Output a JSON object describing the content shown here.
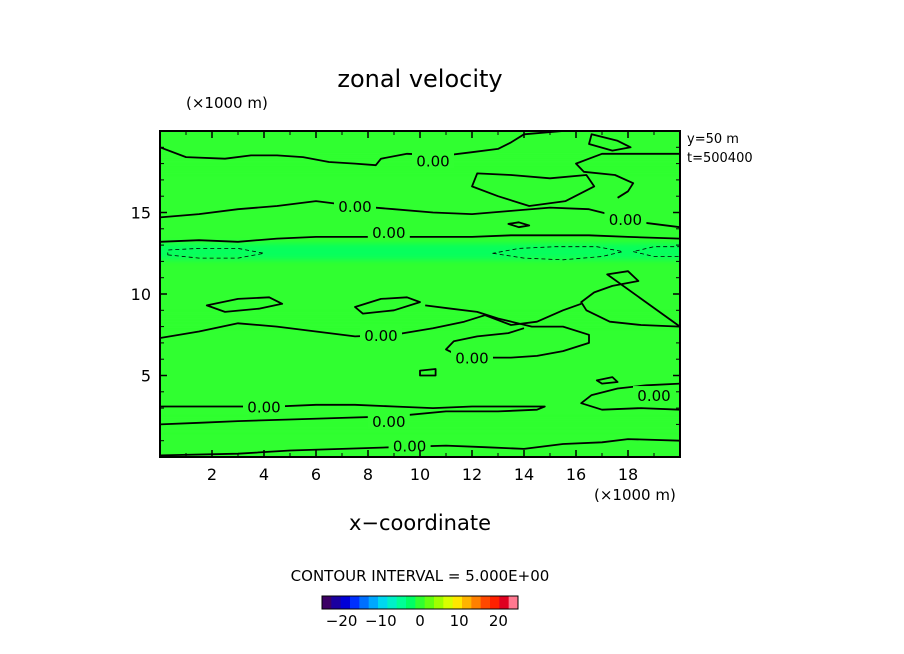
{
  "chart_data": {
    "type": "heatmap",
    "title": "zonal velocity",
    "xlabel": "x−coordinate",
    "x_unit_label": "(×1000 m)",
    "y_unit_label": "(×1000 m)",
    "xlim": [
      0,
      20
    ],
    "ylim": [
      0,
      20
    ],
    "x_ticks": [
      2,
      4,
      6,
      8,
      10,
      12,
      14,
      16,
      18
    ],
    "x_tick_labels": [
      "2",
      "4",
      "6",
      "8",
      "10",
      "12",
      "14",
      "16",
      "18"
    ],
    "y_ticks": [
      5,
      10,
      15
    ],
    "y_tick_labels": [
      "5",
      "10",
      "15"
    ],
    "annotations": [
      "y=50 m",
      "t=500400"
    ],
    "contour_interval_text": "CONTOUR INTERVAL = 5.000E+00",
    "contour_labels": [
      {
        "x": 10.5,
        "y": 18.2,
        "text": "0.00"
      },
      {
        "x": 7.5,
        "y": 15.4,
        "text": "0.00"
      },
      {
        "x": 17.9,
        "y": 14.6,
        "text": "0.00"
      },
      {
        "x": 8.8,
        "y": 13.8,
        "text": "0.00"
      },
      {
        "x": 8.5,
        "y": 7.5,
        "text": "0.00"
      },
      {
        "x": 12.0,
        "y": 6.1,
        "text": "0.00"
      },
      {
        "x": 19.0,
        "y": 3.8,
        "text": "0.00"
      },
      {
        "x": 4.0,
        "y": 3.1,
        "text": "0.00"
      },
      {
        "x": 8.8,
        "y": 2.2,
        "text": "0.00"
      },
      {
        "x": 9.6,
        "y": 0.7,
        "text": "0.00"
      }
    ],
    "colorbar": {
      "range": [
        -25,
        25
      ],
      "ticks": [
        -20,
        -10,
        0,
        10,
        20
      ],
      "tick_labels": [
        "−20",
        "−10",
        "0",
        "10",
        "20"
      ],
      "colors": [
        "#3c0064",
        "#1a00a0",
        "#0000d8",
        "#0030ff",
        "#0070ff",
        "#00a8ff",
        "#00d8f0",
        "#00f0c8",
        "#00ff96",
        "#00ff64",
        "#30ff30",
        "#64ff10",
        "#a0ff00",
        "#d8ff00",
        "#ffe800",
        "#ffb400",
        "#ff8000",
        "#ff4800",
        "#ff2000",
        "#e00020",
        "#ff7890"
      ]
    },
    "field": {
      "background_value": 1,
      "bands": [
        {
          "y": 12.6,
          "width": 1.0,
          "value": -1.5
        },
        {
          "y": 18.0,
          "width": 0.8,
          "value": -0.5
        },
        {
          "y": 8.4,
          "width": 0.5,
          "value": -0.5
        },
        {
          "y": 2.0,
          "width": 0.5,
          "value": -0.5
        }
      ]
    },
    "contours": [
      {
        "style": "solid",
        "closed": false,
        "points": [
          [
            0,
            19
          ],
          [
            1,
            18.4
          ],
          [
            2.5,
            18.3
          ],
          [
            3.5,
            18.5
          ],
          [
            4.5,
            18.5
          ],
          [
            5.5,
            18.4
          ],
          [
            6.5,
            18.1
          ],
          [
            7.5,
            18
          ],
          [
            8.3,
            17.9
          ],
          [
            8.5,
            18.3
          ],
          [
            9.5,
            18.6
          ],
          [
            11,
            18.5
          ],
          [
            12,
            18.7
          ],
          [
            13,
            18.9
          ],
          [
            13.5,
            19.3
          ],
          [
            14,
            19.8
          ],
          [
            15.5,
            20
          ]
        ]
      },
      {
        "style": "solid",
        "closed": false,
        "points": [
          [
            20,
            18.6
          ],
          [
            18.5,
            18.6
          ],
          [
            17,
            18.6
          ],
          [
            16.5,
            18.3
          ],
          [
            16,
            18
          ],
          [
            16.3,
            17.5
          ],
          [
            17.5,
            17.3
          ],
          [
            18.2,
            16.8
          ],
          [
            18,
            16.3
          ],
          [
            17.6,
            15.9
          ]
        ]
      },
      {
        "style": "solid",
        "closed": true,
        "points": [
          [
            16.6,
            19.8
          ],
          [
            17.6,
            19.4
          ],
          [
            18.1,
            19.0
          ],
          [
            17.4,
            18.8
          ],
          [
            16.5,
            19.2
          ]
        ]
      },
      {
        "style": "solid",
        "closed": true,
        "points": [
          [
            12,
            16.6
          ],
          [
            13,
            16.0
          ],
          [
            14.2,
            15.4
          ],
          [
            15.6,
            15.7
          ],
          [
            16.7,
            16.6
          ],
          [
            16.4,
            17.3
          ],
          [
            15,
            17.1
          ],
          [
            13.5,
            17.3
          ],
          [
            12.2,
            17.4
          ]
        ]
      },
      {
        "style": "solid",
        "closed": true,
        "points": [
          [
            13.4,
            14.3
          ],
          [
            13.8,
            14.4
          ],
          [
            14.2,
            14.2
          ],
          [
            13.8,
            14.1
          ]
        ]
      },
      {
        "style": "solid",
        "closed": false,
        "points": [
          [
            0,
            14.7
          ],
          [
            1.5,
            14.9
          ],
          [
            3,
            15.2
          ],
          [
            4.5,
            15.4
          ],
          [
            6,
            15.7
          ],
          [
            7.5,
            15.4
          ],
          [
            9,
            15.2
          ],
          [
            10.5,
            15.0
          ],
          [
            12,
            14.9
          ],
          [
            13.5,
            15.1
          ],
          [
            15,
            15.3
          ],
          [
            16.5,
            15.2
          ],
          [
            17.5,
            14.8
          ],
          [
            18.5,
            14.4
          ],
          [
            20,
            14.1
          ]
        ]
      },
      {
        "style": "solid",
        "closed": false,
        "points": [
          [
            0,
            13.2
          ],
          [
            1.5,
            13.3
          ],
          [
            3,
            13.2
          ],
          [
            4.5,
            13.4
          ],
          [
            6,
            13.5
          ],
          [
            7.5,
            13.5
          ],
          [
            9,
            13.5
          ],
          [
            10.5,
            13.5
          ],
          [
            12,
            13.5
          ],
          [
            13.5,
            13.6
          ],
          [
            15,
            13.6
          ],
          [
            16.5,
            13.6
          ],
          [
            18,
            13.5
          ],
          [
            20,
            13.4
          ]
        ]
      },
      {
        "style": "dashed",
        "closed": true,
        "points": [
          [
            0.3,
            12.4
          ],
          [
            1.5,
            12.2
          ],
          [
            3,
            12.2
          ],
          [
            4,
            12.5
          ],
          [
            3,
            12.8
          ],
          [
            1.5,
            12.8
          ],
          [
            0.3,
            12.7
          ]
        ]
      },
      {
        "style": "dashed",
        "closed": true,
        "points": [
          [
            12.8,
            12.5
          ],
          [
            14,
            12.2
          ],
          [
            15.5,
            12.1
          ],
          [
            17,
            12.3
          ],
          [
            17.8,
            12.6
          ],
          [
            16.8,
            12.9
          ],
          [
            15.2,
            12.9
          ],
          [
            13.8,
            12.8
          ]
        ]
      },
      {
        "style": "dashed",
        "closed": true,
        "points": [
          [
            18.2,
            12.6
          ],
          [
            19,
            12.3
          ],
          [
            20,
            12.3
          ],
          [
            20,
            12.9
          ],
          [
            19,
            12.9
          ]
        ]
      },
      {
        "style": "solid",
        "closed": true,
        "points": [
          [
            1.8,
            9.3
          ],
          [
            3,
            9.7
          ],
          [
            4.2,
            9.8
          ],
          [
            4.7,
            9.4
          ],
          [
            3.8,
            9.1
          ],
          [
            2.5,
            8.9
          ]
        ]
      },
      {
        "style": "solid",
        "closed": true,
        "points": [
          [
            7.5,
            9.2
          ],
          [
            8.5,
            9.7
          ],
          [
            9.5,
            9.8
          ],
          [
            10,
            9.5
          ],
          [
            9,
            9.0
          ],
          [
            7.8,
            8.8
          ]
        ]
      },
      {
        "style": "solid",
        "closed": true,
        "points": [
          [
            17.2,
            11.2
          ],
          [
            18,
            11.4
          ],
          [
            18.4,
            10.8
          ],
          [
            17.4,
            10.5
          ],
          [
            16.7,
            10.1
          ],
          [
            16.2,
            9.5
          ],
          [
            16.4,
            9.0
          ],
          [
            17.3,
            8.3
          ],
          [
            18.5,
            8.1
          ],
          [
            20,
            8.0
          ]
        ]
      },
      {
        "style": "solid",
        "closed": false,
        "points": [
          [
            0,
            7.3
          ],
          [
            1.5,
            7.7
          ],
          [
            3,
            8.2
          ],
          [
            4.5,
            8.0
          ],
          [
            6,
            7.7
          ],
          [
            7.5,
            7.4
          ],
          [
            9,
            7.5
          ],
          [
            10.5,
            7.9
          ],
          [
            11.7,
            8.3
          ],
          [
            12.5,
            8.7
          ],
          [
            13.5,
            8.1
          ],
          [
            14.5,
            8.3
          ],
          [
            15.5,
            9.0
          ],
          [
            16.2,
            9.4
          ]
        ]
      },
      {
        "style": "solid",
        "closed": false,
        "points": [
          [
            10.2,
            9.3
          ],
          [
            11.2,
            9.1
          ],
          [
            12.2,
            8.9
          ],
          [
            13,
            8.5
          ],
          [
            14.3,
            8.0
          ],
          [
            15.5,
            8.0
          ],
          [
            16.5,
            7.5
          ],
          [
            16.5,
            7.0
          ],
          [
            15.5,
            6.5
          ],
          [
            14.5,
            6.2
          ],
          [
            13.5,
            6.1
          ],
          [
            12.5,
            6.1
          ],
          [
            11.5,
            6.2
          ],
          [
            11,
            6.6
          ],
          [
            11.3,
            7.1
          ],
          [
            12.2,
            7.4
          ],
          [
            13.4,
            7.6
          ],
          [
            14,
            7.9
          ]
        ]
      },
      {
        "style": "solid",
        "closed": true,
        "points": [
          [
            10,
            5.3
          ],
          [
            10.6,
            5.4
          ],
          [
            10.6,
            5.0
          ],
          [
            10,
            5.0
          ]
        ]
      },
      {
        "style": "solid",
        "closed": true,
        "points": [
          [
            16.8,
            4.7
          ],
          [
            17.4,
            4.9
          ],
          [
            17.6,
            4.6
          ],
          [
            17,
            4.5
          ]
        ]
      },
      {
        "style": "solid",
        "closed": false,
        "points": [
          [
            0,
            3.1
          ],
          [
            1.5,
            3.1
          ],
          [
            3,
            3.1
          ],
          [
            4.5,
            3.1
          ],
          [
            6,
            3.2
          ],
          [
            7.5,
            3.2
          ],
          [
            9,
            3.1
          ],
          [
            10.5,
            3.0
          ],
          [
            12,
            3.1
          ],
          [
            13.5,
            3.1
          ],
          [
            14.8,
            3.1
          ],
          [
            14.5,
            2.9
          ],
          [
            13,
            2.8
          ],
          [
            11,
            2.8
          ],
          [
            9,
            2.5
          ],
          [
            7,
            2.4
          ],
          [
            5,
            2.3
          ],
          [
            3,
            2.2
          ],
          [
            1.5,
            2.1
          ],
          [
            0,
            2.0
          ]
        ]
      },
      {
        "style": "solid",
        "closed": false,
        "points": [
          [
            20,
            2.9
          ],
          [
            18.5,
            3.0
          ],
          [
            17,
            2.9
          ],
          [
            16.2,
            3.3
          ],
          [
            16.6,
            3.8
          ],
          [
            17.6,
            4.2
          ],
          [
            18.7,
            4.4
          ],
          [
            20,
            4.5
          ]
        ]
      },
      {
        "style": "solid",
        "closed": false,
        "points": [
          [
            0,
            0.1
          ],
          [
            3,
            0.2
          ],
          [
            5,
            0.4
          ],
          [
            7,
            0.5
          ],
          [
            9,
            0.6
          ],
          [
            11,
            0.7
          ],
          [
            12.5,
            0.6
          ],
          [
            14,
            0.5
          ],
          [
            15.5,
            0.8
          ],
          [
            17,
            0.9
          ],
          [
            18,
            1.1
          ],
          [
            20,
            1.0
          ]
        ]
      }
    ]
  }
}
